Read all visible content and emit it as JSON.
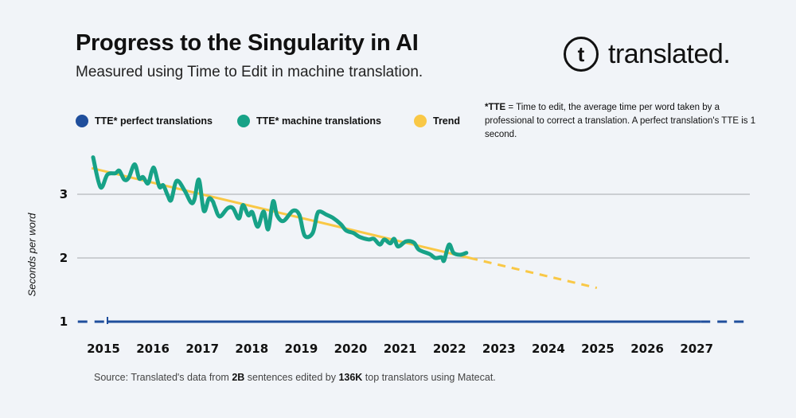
{
  "header": {
    "title": "Progress to the Singularity in AI",
    "subtitle": "Measured using Time to Edit in machine translation."
  },
  "logo": {
    "mark": "t",
    "text": "translated."
  },
  "note": {
    "bold": "*TTE",
    "text": " = Time to edit, the average time per word taken by a professional to correct a translation. A perfect translation's TTE is 1 second."
  },
  "source": {
    "prefix": "Source:  Translated's data from ",
    "b1": "2B",
    "mid": " sentences edited by ",
    "b2": "136K",
    "suffix": " top translators using Matecat."
  },
  "colors": {
    "perfect": "#1f4e9c",
    "machine": "#17a287",
    "trend": "#f9c846",
    "grid": "#b5b8bc"
  },
  "chart_data": {
    "type": "line",
    "title": "Progress to the Singularity in AI",
    "subtitle": "Measured using Time to Edit in machine translation.",
    "xlabel": "",
    "ylabel": "Seconds per word",
    "xlim": [
      2014.4,
      2028
    ],
    "ylim": [
      1,
      3.7
    ],
    "x_ticks": [
      2015,
      2016,
      2017,
      2018,
      2019,
      2020,
      2021,
      2022,
      2023,
      2024,
      2025,
      2026,
      2027
    ],
    "y_ticks": [
      1,
      2,
      3
    ],
    "grid": "horizontal",
    "legend_placement": "top-left",
    "series": [
      {
        "name": "TTE* perfect translations",
        "color": "#1f4e9c",
        "solid": [
          [
            2015,
            1
          ],
          [
            2027,
            1
          ]
        ],
        "dashed_extent": [
          2014.4,
          2028
        ]
      },
      {
        "name": "TTE* machine translations",
        "color": "#17a287",
        "points": [
          [
            2014.71,
            3.58
          ],
          [
            2014.86,
            3.11
          ],
          [
            2015.0,
            3.31
          ],
          [
            2015.16,
            3.33
          ],
          [
            2015.24,
            3.37
          ],
          [
            2015.34,
            3.23
          ],
          [
            2015.43,
            3.26
          ],
          [
            2015.55,
            3.47
          ],
          [
            2015.64,
            3.25
          ],
          [
            2015.72,
            3.27
          ],
          [
            2015.82,
            3.17
          ],
          [
            2015.9,
            3.37
          ],
          [
            2015.95,
            3.4
          ],
          [
            2016.05,
            3.12
          ],
          [
            2016.13,
            3.14
          ],
          [
            2016.22,
            2.98
          ],
          [
            2016.29,
            2.91
          ],
          [
            2016.4,
            3.21
          ],
          [
            2016.56,
            3.06
          ],
          [
            2016.69,
            2.87
          ],
          [
            2016.76,
            2.92
          ],
          [
            2016.85,
            3.23
          ],
          [
            2016.95,
            2.74
          ],
          [
            2017.05,
            2.93
          ],
          [
            2017.13,
            2.89
          ],
          [
            2017.17,
            2.81
          ],
          [
            2017.27,
            2.65
          ],
          [
            2017.43,
            2.78
          ],
          [
            2017.54,
            2.78
          ],
          [
            2017.66,
            2.62
          ],
          [
            2017.74,
            2.83
          ],
          [
            2017.85,
            2.67
          ],
          [
            2017.93,
            2.72
          ],
          [
            2018.04,
            2.49
          ],
          [
            2018.16,
            2.73
          ],
          [
            2018.25,
            2.45
          ],
          [
            2018.35,
            2.89
          ],
          [
            2018.43,
            2.67
          ],
          [
            2018.56,
            2.58
          ],
          [
            2018.75,
            2.74
          ],
          [
            2018.88,
            2.68
          ],
          [
            2018.99,
            2.35
          ],
          [
            2019.15,
            2.39
          ],
          [
            2019.24,
            2.68
          ],
          [
            2019.3,
            2.73
          ],
          [
            2019.43,
            2.68
          ],
          [
            2019.56,
            2.63
          ],
          [
            2019.72,
            2.53
          ],
          [
            2019.83,
            2.43
          ],
          [
            2019.98,
            2.39
          ],
          [
            2020.1,
            2.33
          ],
          [
            2020.28,
            2.29
          ],
          [
            2020.39,
            2.3
          ],
          [
            2020.51,
            2.21
          ],
          [
            2020.6,
            2.29
          ],
          [
            2020.72,
            2.23
          ],
          [
            2020.8,
            2.3
          ],
          [
            2020.88,
            2.18
          ],
          [
            2021.04,
            2.26
          ],
          [
            2021.2,
            2.24
          ],
          [
            2021.3,
            2.13
          ],
          [
            2021.52,
            2.06
          ],
          [
            2021.63,
            2.0
          ],
          [
            2021.76,
            2.01
          ],
          [
            2021.81,
            1.96
          ],
          [
            2021.91,
            2.21
          ],
          [
            2022.0,
            2.08
          ],
          [
            2022.13,
            2.05
          ],
          [
            2022.26,
            2.08
          ]
        ]
      },
      {
        "name": "Trend",
        "color": "#f9c846",
        "solid": [
          [
            2014.68,
            3.41
          ],
          [
            2022.33,
            2.0
          ]
        ],
        "dashed": [
          [
            2022.33,
            2.0
          ],
          [
            2024.9,
            1.53
          ]
        ]
      }
    ]
  }
}
